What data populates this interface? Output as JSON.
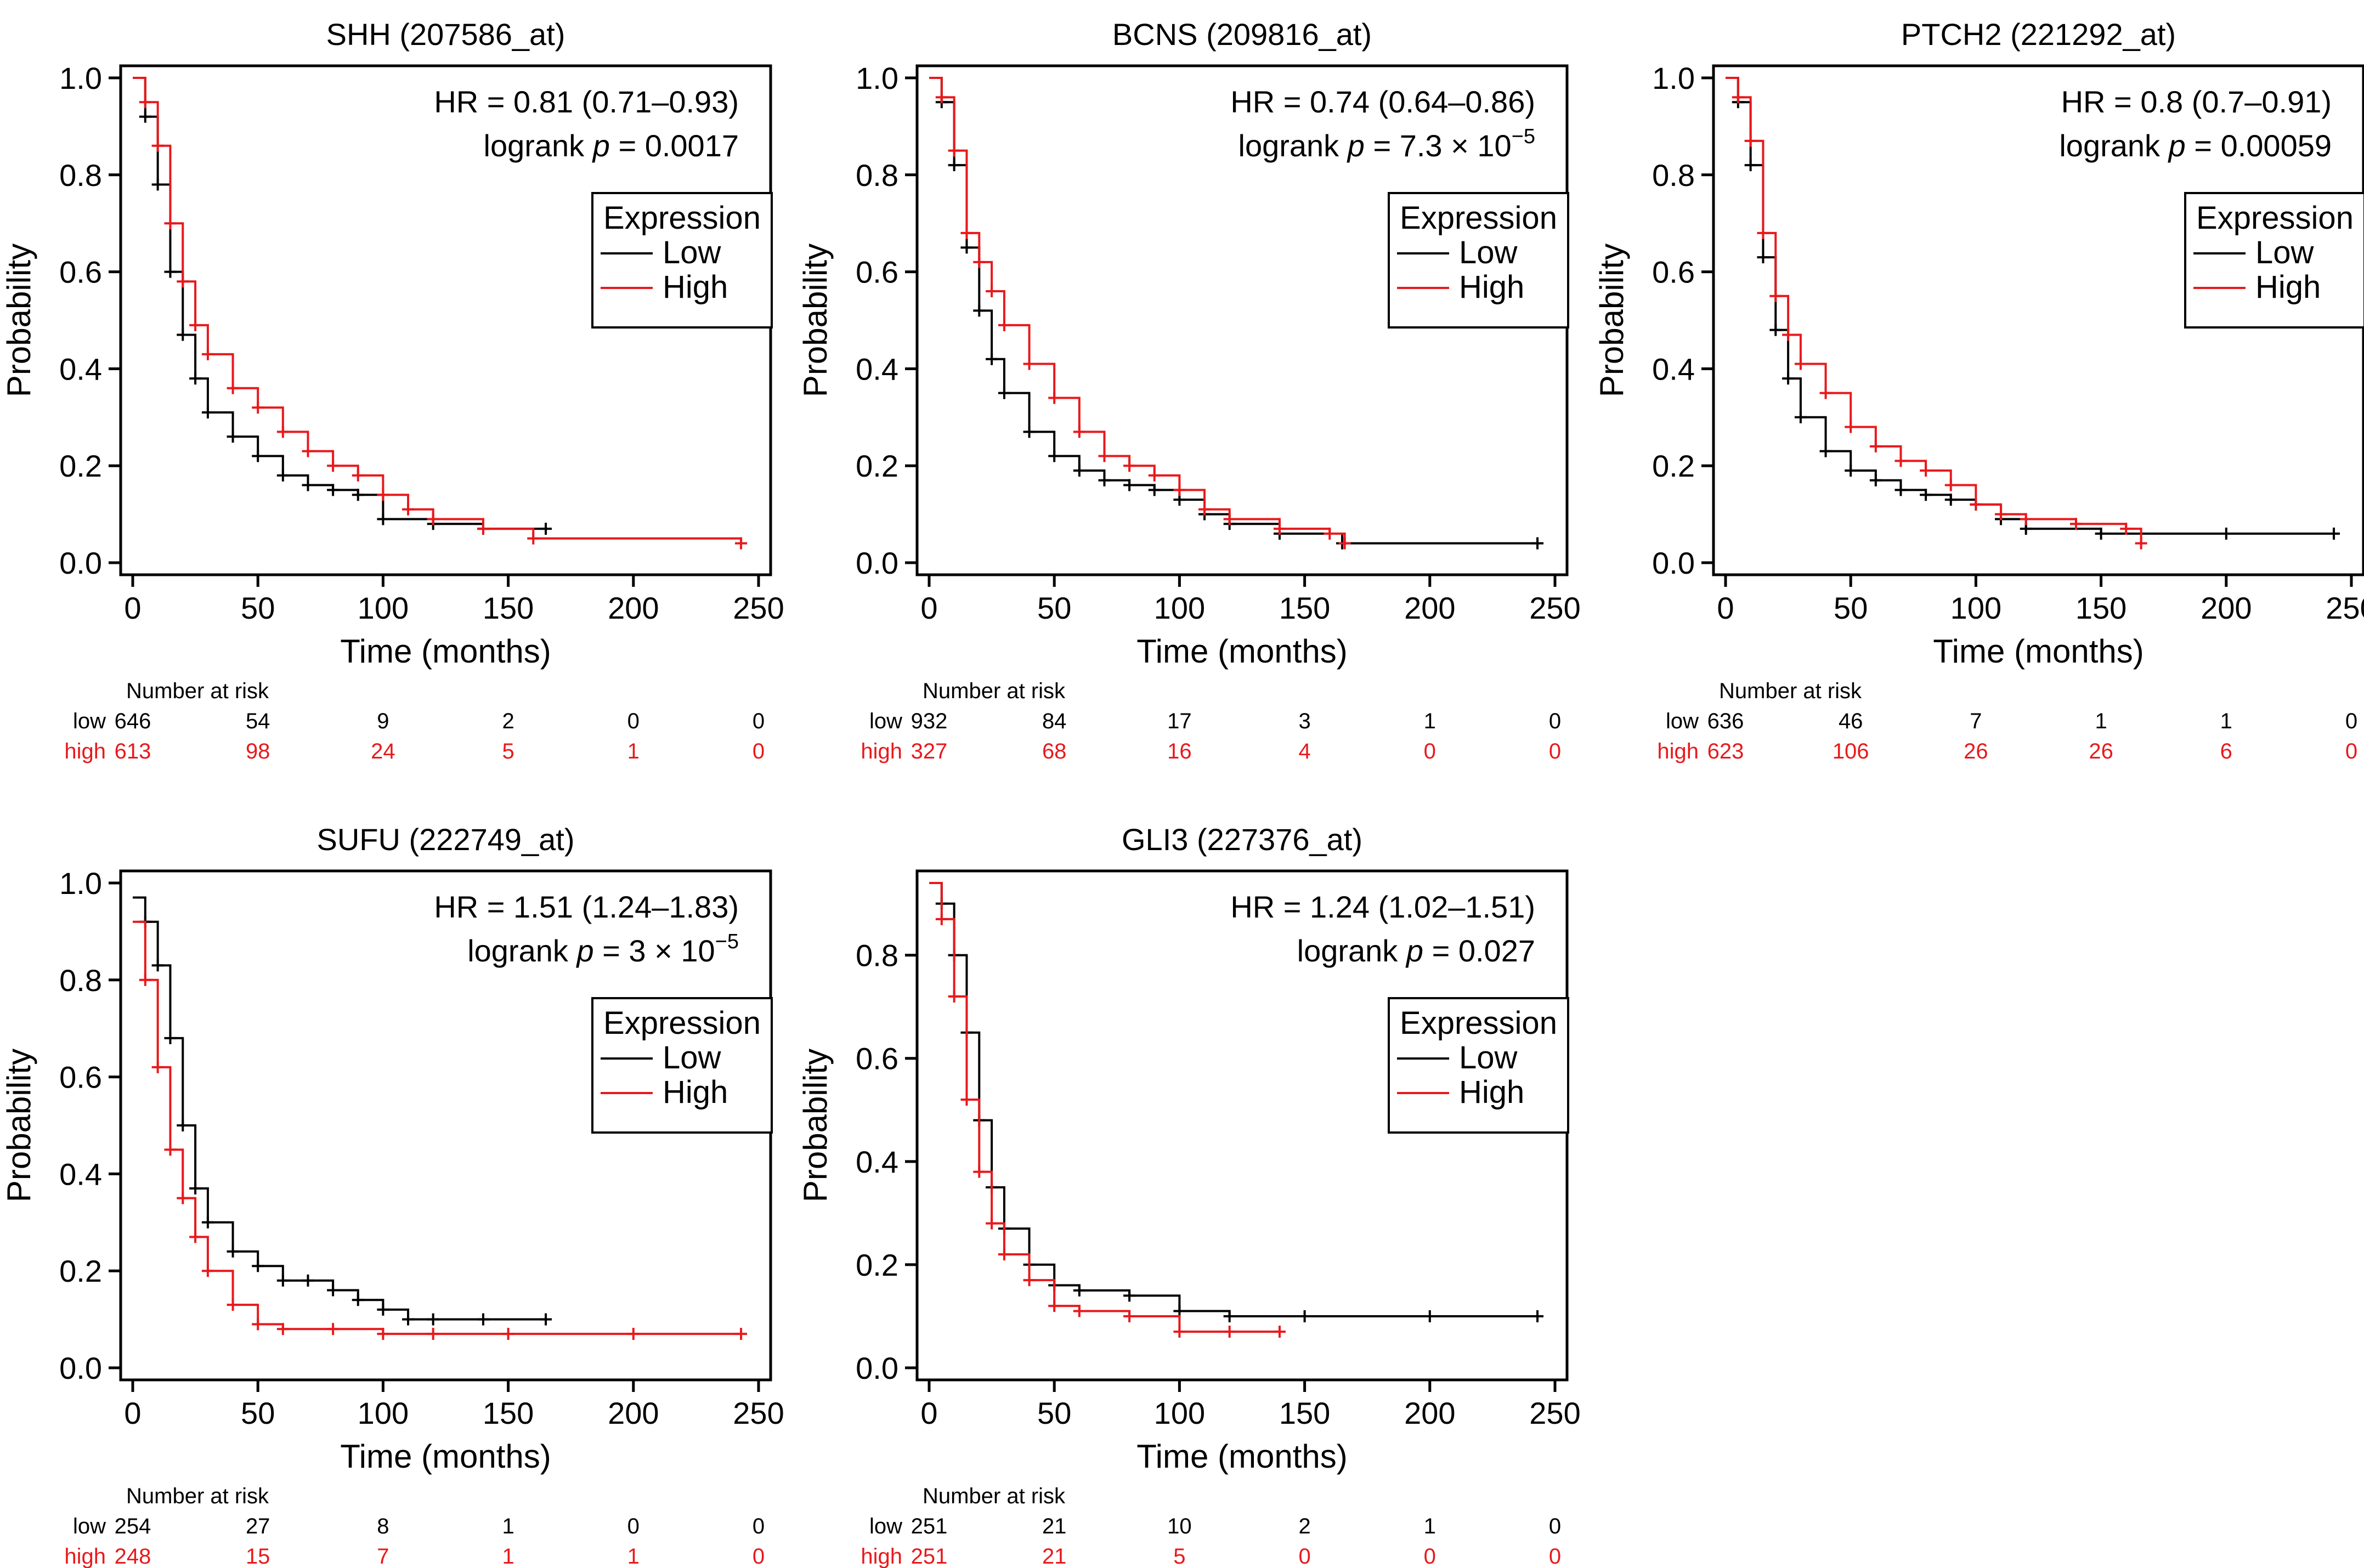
{
  "figure": {
    "risk_header": "Number at risk",
    "risk_row_labels": {
      "low": "low",
      "high": "high"
    },
    "legend_title": "Expression",
    "colors": {
      "low": "#000000",
      "high": "#e8191c"
    }
  },
  "chart_data": [
    {
      "type": "line",
      "title": "SHH (207586_at)",
      "xlabel": "Time (months)",
      "ylabel": "Probability",
      "xlim": [
        0,
        250
      ],
      "ylim": [
        0,
        1
      ],
      "xticks": [
        0,
        50,
        100,
        150,
        200,
        250
      ],
      "xtick_labels": [
        "0",
        "50",
        "100",
        "150",
        "200",
        "250"
      ],
      "yticks": [
        0,
        0.2,
        0.4,
        0.6,
        0.8,
        1
      ],
      "ytick_labels": [
        "0.0",
        "0.2",
        "0.4",
        "0.6",
        "0.8",
        "1.0"
      ],
      "hr_text": "HR = 0.81 (0.71–0.93)",
      "logrank_prefix": "logrank ",
      "p_symbol": "p",
      "p_value": " = 0.0017",
      "p_exponent": "",
      "legend": [
        "Low",
        "High"
      ],
      "series": [
        {
          "name": "Low",
          "color": "#000000",
          "x": [
            0,
            5,
            10,
            15,
            20,
            25,
            30,
            40,
            50,
            60,
            70,
            80,
            90,
            100,
            120,
            140,
            165
          ],
          "y": [
            1.0,
            0.92,
            0.78,
            0.6,
            0.47,
            0.38,
            0.31,
            0.26,
            0.22,
            0.18,
            0.16,
            0.15,
            0.14,
            0.09,
            0.08,
            0.07,
            0.07
          ]
        },
        {
          "name": "High",
          "color": "#e8191c",
          "x": [
            0,
            5,
            10,
            15,
            20,
            25,
            30,
            40,
            50,
            60,
            70,
            80,
            90,
            100,
            110,
            120,
            140,
            160,
            243
          ],
          "y": [
            1.0,
            0.95,
            0.86,
            0.7,
            0.58,
            0.49,
            0.43,
            0.36,
            0.32,
            0.27,
            0.23,
            0.2,
            0.18,
            0.14,
            0.11,
            0.09,
            0.07,
            0.05,
            0.04
          ]
        }
      ],
      "risk_table": {
        "low": [
          "646",
          "54",
          "9",
          "2",
          "0",
          "0"
        ],
        "high": [
          "613",
          "98",
          "24",
          "5",
          "1",
          "0"
        ]
      }
    },
    {
      "type": "line",
      "title": "BCNS (209816_at)",
      "xlabel": "Time (months)",
      "ylabel": "Probability",
      "xlim": [
        0,
        250
      ],
      "ylim": [
        0,
        1
      ],
      "xticks": [
        0,
        50,
        100,
        150,
        200,
        250
      ],
      "xtick_labels": [
        "0",
        "50",
        "100",
        "150",
        "200",
        "250"
      ],
      "yticks": [
        0,
        0.2,
        0.4,
        0.6,
        0.8,
        1
      ],
      "ytick_labels": [
        "0.0",
        "0.2",
        "0.4",
        "0.6",
        "0.8",
        "1.0"
      ],
      "hr_text": "HR = 0.74 (0.64–0.86)",
      "logrank_prefix": "logrank ",
      "p_symbol": "p",
      "p_value": " = 7.3 × 10",
      "p_exponent": "−5",
      "legend": [
        "Low",
        "High"
      ],
      "series": [
        {
          "name": "Low",
          "color": "#000000",
          "x": [
            0,
            5,
            10,
            15,
            20,
            25,
            30,
            40,
            50,
            60,
            70,
            80,
            90,
            100,
            110,
            120,
            140,
            165,
            243
          ],
          "y": [
            1.0,
            0.95,
            0.82,
            0.65,
            0.52,
            0.42,
            0.35,
            0.27,
            0.22,
            0.19,
            0.17,
            0.16,
            0.15,
            0.13,
            0.1,
            0.08,
            0.06,
            0.04,
            0.04
          ]
        },
        {
          "name": "High",
          "color": "#e8191c",
          "x": [
            0,
            5,
            10,
            15,
            20,
            25,
            30,
            40,
            50,
            60,
            70,
            80,
            90,
            100,
            110,
            120,
            140,
            160,
            166
          ],
          "y": [
            1.0,
            0.96,
            0.85,
            0.68,
            0.62,
            0.56,
            0.49,
            0.41,
            0.34,
            0.27,
            0.22,
            0.2,
            0.18,
            0.15,
            0.11,
            0.09,
            0.07,
            0.06,
            0.04
          ]
        }
      ],
      "risk_table": {
        "low": [
          "932",
          "84",
          "17",
          "3",
          "1",
          "0"
        ],
        "high": [
          "327",
          "68",
          "16",
          "4",
          "0",
          "0"
        ]
      }
    },
    {
      "type": "line",
      "title": "PTCH2 (221292_at)",
      "xlabel": "Time (months)",
      "ylabel": "Probability",
      "xlim": [
        0,
        250
      ],
      "ylim": [
        0,
        1
      ],
      "xticks": [
        0,
        50,
        100,
        150,
        200,
        250
      ],
      "xtick_labels": [
        "0",
        "50",
        "100",
        "150",
        "200",
        "250"
      ],
      "yticks": [
        0,
        0.2,
        0.4,
        0.6,
        0.8,
        1
      ],
      "ytick_labels": [
        "0.0",
        "0.2",
        "0.4",
        "0.6",
        "0.8",
        "1.0"
      ],
      "hr_text": "HR = 0.8 (0.7–0.91)",
      "logrank_prefix": "logrank ",
      "p_symbol": "p",
      "p_value": " = 0.00059",
      "p_exponent": "",
      "legend": [
        "Low",
        "High"
      ],
      "series": [
        {
          "name": "Low",
          "color": "#000000",
          "x": [
            0,
            5,
            10,
            15,
            20,
            25,
            30,
            40,
            50,
            60,
            70,
            80,
            90,
            100,
            110,
            120,
            150,
            200,
            243
          ],
          "y": [
            1.0,
            0.95,
            0.82,
            0.63,
            0.48,
            0.38,
            0.3,
            0.23,
            0.19,
            0.17,
            0.15,
            0.14,
            0.13,
            0.12,
            0.09,
            0.07,
            0.06,
            0.06,
            0.06
          ]
        },
        {
          "name": "High",
          "color": "#e8191c",
          "x": [
            0,
            5,
            10,
            15,
            20,
            25,
            30,
            40,
            50,
            60,
            70,
            80,
            90,
            100,
            110,
            120,
            140,
            160,
            166
          ],
          "y": [
            1.0,
            0.96,
            0.87,
            0.68,
            0.55,
            0.47,
            0.41,
            0.35,
            0.28,
            0.24,
            0.21,
            0.19,
            0.16,
            0.12,
            0.1,
            0.09,
            0.08,
            0.07,
            0.04
          ]
        }
      ],
      "risk_table": {
        "low": [
          "636",
          "46",
          "7",
          "1",
          "1",
          "0"
        ],
        "high": [
          "623",
          "106",
          "26",
          "26",
          "6",
          "0"
        ]
      }
    },
    {
      "type": "line",
      "title": "SUFU (222749_at)",
      "xlabel": "Time (months)",
      "ylabel": "Probability",
      "xlim": [
        0,
        250
      ],
      "ylim": [
        0,
        1
      ],
      "xticks": [
        0,
        50,
        100,
        150,
        200,
        250
      ],
      "xtick_labels": [
        "0",
        "50",
        "100",
        "150",
        "200",
        "250"
      ],
      "yticks": [
        0,
        0.2,
        0.4,
        0.6,
        0.8,
        1
      ],
      "ytick_labels": [
        "0.0",
        "0.2",
        "0.4",
        "0.6",
        "0.8",
        "1.0"
      ],
      "hr_text": "HR = 1.51 (1.24–1.83)",
      "logrank_prefix": "logrank ",
      "p_symbol": "p",
      "p_value": " = 3 × 10",
      "p_exponent": "−5",
      "legend": [
        "Low",
        "High"
      ],
      "series": [
        {
          "name": "Low",
          "color": "#000000",
          "x": [
            0,
            5,
            10,
            15,
            20,
            25,
            30,
            40,
            50,
            60,
            70,
            80,
            90,
            100,
            110,
            120,
            140,
            165
          ],
          "y": [
            0.97,
            0.92,
            0.83,
            0.68,
            0.5,
            0.37,
            0.3,
            0.24,
            0.21,
            0.18,
            0.18,
            0.16,
            0.14,
            0.12,
            0.1,
            0.1,
            0.1,
            0.1
          ]
        },
        {
          "name": "High",
          "color": "#e8191c",
          "x": [
            0,
            5,
            10,
            15,
            20,
            25,
            30,
            40,
            50,
            60,
            80,
            100,
            120,
            150,
            200,
            243
          ],
          "y": [
            0.92,
            0.8,
            0.62,
            0.45,
            0.35,
            0.27,
            0.2,
            0.13,
            0.09,
            0.08,
            0.08,
            0.07,
            0.07,
            0.07,
            0.07,
            0.07
          ]
        }
      ],
      "risk_table": {
        "low": [
          "254",
          "27",
          "8",
          "1",
          "0",
          "0"
        ],
        "high": [
          "248",
          "15",
          "7",
          "1",
          "1",
          "0"
        ]
      }
    },
    {
      "type": "line",
      "title": "GLI3 (227376_at)",
      "xlabel": "Time (months)",
      "ylabel": "Probability",
      "xlim": [
        0,
        250
      ],
      "ylim": [
        0,
        0.94
      ],
      "xticks": [
        0,
        50,
        100,
        150,
        200,
        250
      ],
      "xtick_labels": [
        "0",
        "50",
        "100",
        "150",
        "200",
        "250"
      ],
      "yticks": [
        0,
        0.2,
        0.4,
        0.6,
        0.8
      ],
      "ytick_labels": [
        "0.0",
        "0.2",
        "0.4",
        "0.6",
        "0.8"
      ],
      "hr_text": "HR = 1.24 (1.02–1.51)",
      "logrank_prefix": "logrank ",
      "p_symbol": "p",
      "p_value": " = 0.027",
      "p_exponent": "",
      "legend": [
        "Low",
        "High"
      ],
      "series": [
        {
          "name": "Low",
          "color": "#000000",
          "x": [
            0,
            5,
            10,
            15,
            20,
            25,
            30,
            40,
            50,
            60,
            80,
            100,
            120,
            150,
            200,
            243
          ],
          "y": [
            0.94,
            0.9,
            0.8,
            0.65,
            0.48,
            0.35,
            0.27,
            0.2,
            0.16,
            0.15,
            0.14,
            0.11,
            0.1,
            0.1,
            0.1,
            0.1
          ]
        },
        {
          "name": "High",
          "color": "#e8191c",
          "x": [
            0,
            5,
            10,
            15,
            20,
            25,
            30,
            40,
            50,
            60,
            80,
            100,
            120,
            140
          ],
          "y": [
            0.94,
            0.87,
            0.72,
            0.52,
            0.38,
            0.28,
            0.22,
            0.17,
            0.12,
            0.11,
            0.1,
            0.07,
            0.07,
            0.07
          ]
        }
      ],
      "risk_table": {
        "low": [
          "251",
          "21",
          "10",
          "2",
          "1",
          "0"
        ],
        "high": [
          "251",
          "21",
          "5",
          "0",
          "0",
          "0"
        ]
      }
    }
  ]
}
